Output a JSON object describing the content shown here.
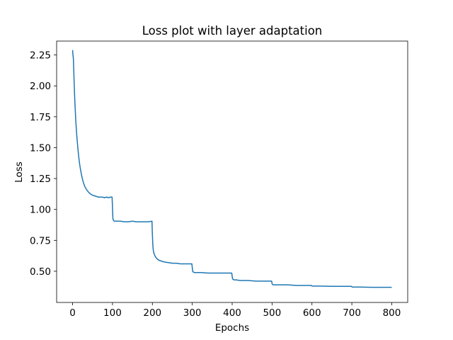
{
  "chart_data": {
    "type": "line",
    "title": "Loss plot with layer adaptation",
    "xlabel": "Epochs",
    "ylabel": "Loss",
    "xlim": [
      -40,
      840
    ],
    "ylim": [
      0.2475,
      2.3625
    ],
    "xticks": [
      0,
      100,
      200,
      300,
      400,
      500,
      600,
      700,
      800
    ],
    "yticks": [
      0.5,
      0.75,
      1.0,
      1.25,
      1.5,
      1.75,
      2.0,
      2.25
    ],
    "ytick_labels": [
      "0.50",
      "0.75",
      "1.00",
      "1.25",
      "1.50",
      "1.75",
      "2.00",
      "2.25"
    ],
    "grid": false,
    "legend": "none",
    "series": [
      {
        "color": "#1f77b4",
        "x": [
          0,
          1,
          2,
          3,
          4,
          5,
          6,
          8,
          10,
          12,
          14,
          16,
          18,
          20,
          23,
          26,
          30,
          35,
          40,
          45,
          50,
          55,
          60,
          65,
          70,
          75,
          80,
          85,
          90,
          95,
          99,
          100,
          101,
          102,
          103,
          105,
          110,
          120,
          130,
          140,
          150,
          160,
          170,
          180,
          190,
          199,
          200,
          201,
          202,
          203,
          205,
          208,
          212,
          216,
          220,
          225,
          230,
          240,
          250,
          260,
          270,
          280,
          290,
          299,
          300,
          301,
          302,
          305,
          310,
          320,
          340,
          360,
          380,
          399,
          400,
          401,
          402,
          405,
          410,
          420,
          440,
          460,
          480,
          499,
          500,
          501,
          502,
          505,
          520,
          540,
          560,
          580,
          599,
          600,
          601,
          602,
          620,
          650,
          680,
          699,
          700,
          701,
          702,
          720,
          750,
          780,
          800
        ],
        "y": [
          2.29,
          2.25,
          2.22,
          2.12,
          2.02,
          1.93,
          1.85,
          1.72,
          1.62,
          1.54,
          1.47,
          1.41,
          1.36,
          1.32,
          1.27,
          1.23,
          1.19,
          1.16,
          1.14,
          1.125,
          1.115,
          1.11,
          1.105,
          1.1,
          1.1,
          1.1,
          1.095,
          1.1,
          1.095,
          1.1,
          1.1,
          1.02,
          0.93,
          0.915,
          0.91,
          0.905,
          0.905,
          0.905,
          0.9,
          0.9,
          0.905,
          0.9,
          0.9,
          0.9,
          0.9,
          0.905,
          0.8,
          0.72,
          0.68,
          0.655,
          0.635,
          0.615,
          0.6,
          0.59,
          0.585,
          0.58,
          0.575,
          0.57,
          0.565,
          0.565,
          0.56,
          0.56,
          0.56,
          0.56,
          0.53,
          0.5,
          0.495,
          0.49,
          0.49,
          0.49,
          0.485,
          0.485,
          0.485,
          0.485,
          0.46,
          0.44,
          0.435,
          0.43,
          0.43,
          0.425,
          0.425,
          0.42,
          0.42,
          0.42,
          0.4,
          0.395,
          0.39,
          0.39,
          0.39,
          0.39,
          0.385,
          0.385,
          0.385,
          0.38,
          0.38,
          0.38,
          0.38,
          0.378,
          0.378,
          0.378,
          0.374,
          0.372,
          0.372,
          0.372,
          0.37,
          0.37,
          0.37
        ]
      }
    ]
  }
}
